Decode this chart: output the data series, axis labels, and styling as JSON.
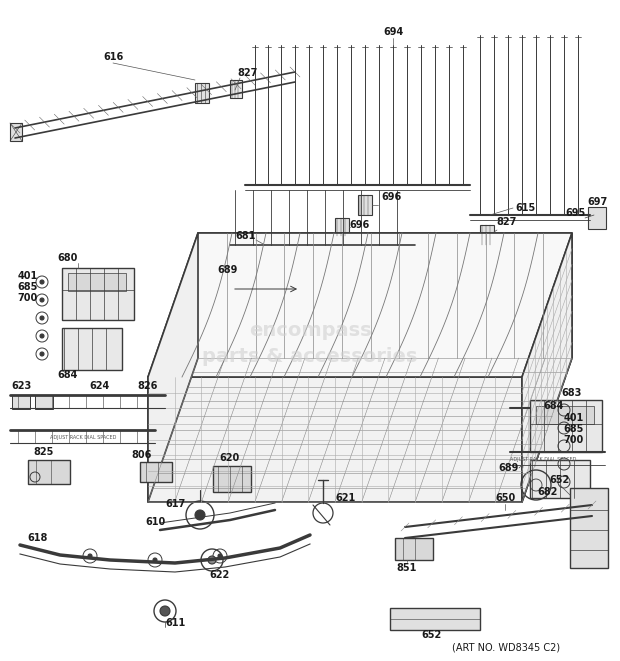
{
  "art_no": "(ART NO. WD8345 C2)",
  "bg_color": "#ffffff",
  "line_color": "#3a3a3a",
  "label_color": "#1a1a1a",
  "fig_width": 6.2,
  "fig_height": 6.61,
  "dpi": 100,
  "watermark": "encompass\nparts & accessories",
  "watermark_color": "#d0d0d0"
}
